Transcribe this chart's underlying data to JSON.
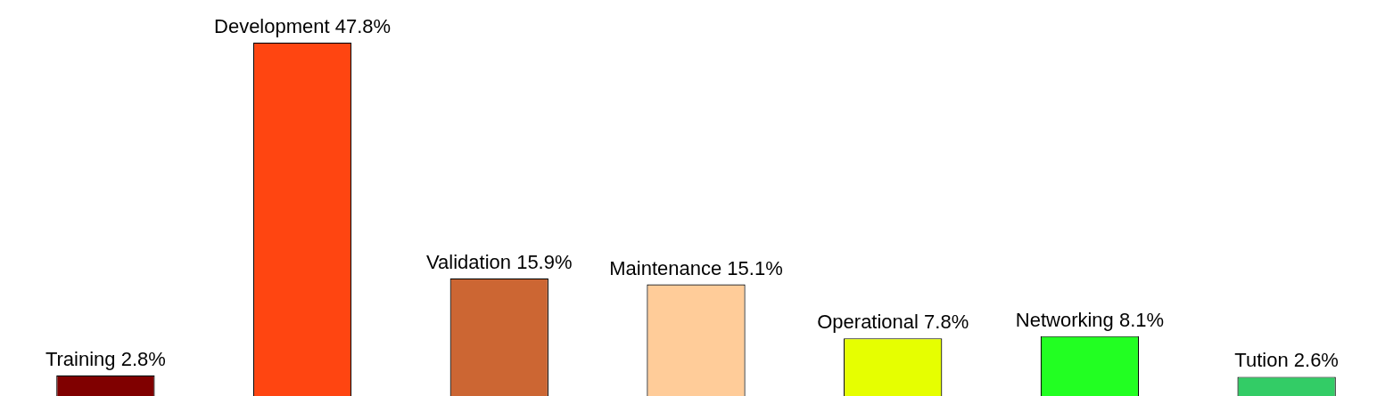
{
  "chart_data": {
    "type": "bar",
    "categories": [
      "Training",
      "Development",
      "Validation",
      "Maintenance",
      "Operational",
      "Networking",
      "Tution"
    ],
    "values": [
      2.8,
      47.8,
      15.9,
      15.1,
      7.8,
      8.1,
      2.6
    ],
    "colors": [
      "#800000",
      "#ff4511",
      "#cc6633",
      "#ffcc99",
      "#e6ff00",
      "#22ff22",
      "#33cc66"
    ],
    "value_labels": [
      "2.8%",
      "47.8%",
      "15.9%",
      "15.1%",
      "7.8%",
      "8.1%",
      "2.6%"
    ],
    "legend": false
  }
}
